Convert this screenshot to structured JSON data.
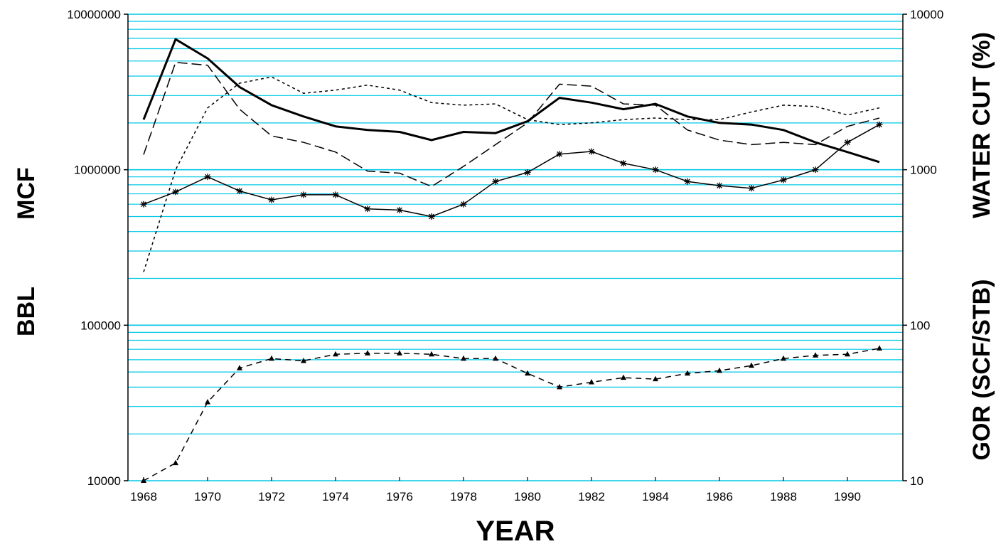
{
  "chart_data": {
    "type": "line",
    "title": "",
    "xlabel": "YEAR",
    "ylabel_left": [
      "MCF",
      "BBL"
    ],
    "ylabel_right": [
      "WATER CUT (%)",
      "GOR (SCF/STB)"
    ],
    "x": [
      1968,
      1969,
      1970,
      1971,
      1972,
      1973,
      1974,
      1975,
      1976,
      1977,
      1978,
      1979,
      1980,
      1981,
      1982,
      1983,
      1984,
      1985,
      1986,
      1987,
      1988,
      1989,
      1990,
      1991
    ],
    "xlim": [
      1968,
      1991
    ],
    "x_ticks": [
      "1968",
      "1970",
      "1972",
      "1974",
      "1976",
      "1978",
      "1980",
      "1982",
      "1984",
      "1986",
      "1988",
      "1990"
    ],
    "y_left_scale": "log",
    "ylim_left": [
      10000,
      10000000
    ],
    "y_left_ticks": [
      "10000",
      "100000",
      "1000000",
      "10000000"
    ],
    "y_right_scale": "log",
    "ylim_right": [
      10,
      10000
    ],
    "y_right_ticks": [
      "10",
      "100",
      "1000",
      "10000"
    ],
    "grid": true,
    "grid_color": "#00c8e6",
    "series": [
      {
        "axis": "left",
        "style": "thick-solid",
        "marker": "none",
        "values": [
          2100000,
          6900000,
          5200000,
          3400000,
          2600000,
          2200000,
          1900000,
          1800000,
          1750000,
          1550000,
          1750000,
          1720000,
          2050000,
          2900000,
          2700000,
          2450000,
          2650000,
          2200000,
          2000000,
          1950000,
          1800000,
          1500000,
          1300000,
          1120000
        ]
      },
      {
        "axis": "left",
        "style": "long-dash",
        "marker": "none",
        "values": [
          1250000,
          4900000,
          4700000,
          2450000,
          1650000,
          1500000,
          1300000,
          980000,
          950000,
          780000,
          1050000,
          1450000,
          2000000,
          3550000,
          3450000,
          2650000,
          2600000,
          1800000,
          1550000,
          1450000,
          1500000,
          1450000,
          1900000,
          2150000
        ]
      },
      {
        "axis": "left",
        "style": "short-dash",
        "marker": "none",
        "values": [
          220000,
          1000000,
          2500000,
          3600000,
          3950000,
          3100000,
          3250000,
          3500000,
          3250000,
          2700000,
          2600000,
          2650000,
          2100000,
          1950000,
          2000000,
          2100000,
          2150000,
          2100000,
          2100000,
          2350000,
          2600000,
          2550000,
          2250000,
          2500000
        ]
      },
      {
        "axis": "left",
        "style": "solid",
        "marker": "asterisk",
        "values": [
          600000,
          720000,
          900000,
          730000,
          640000,
          690000,
          690000,
          560000,
          550000,
          500000,
          600000,
          840000,
          960000,
          1260000,
          1310000,
          1100000,
          1000000,
          840000,
          790000,
          760000,
          860000,
          1000000,
          1500000,
          1950000
        ]
      },
      {
        "axis": "right",
        "style": "dash",
        "marker": "triangle",
        "values": [
          10,
          13,
          32,
          53,
          61,
          59,
          65,
          66,
          66,
          65,
          61,
          61,
          49,
          40,
          43,
          46,
          45,
          49,
          51,
          55,
          61,
          64,
          65,
          71
        ]
      }
    ]
  }
}
